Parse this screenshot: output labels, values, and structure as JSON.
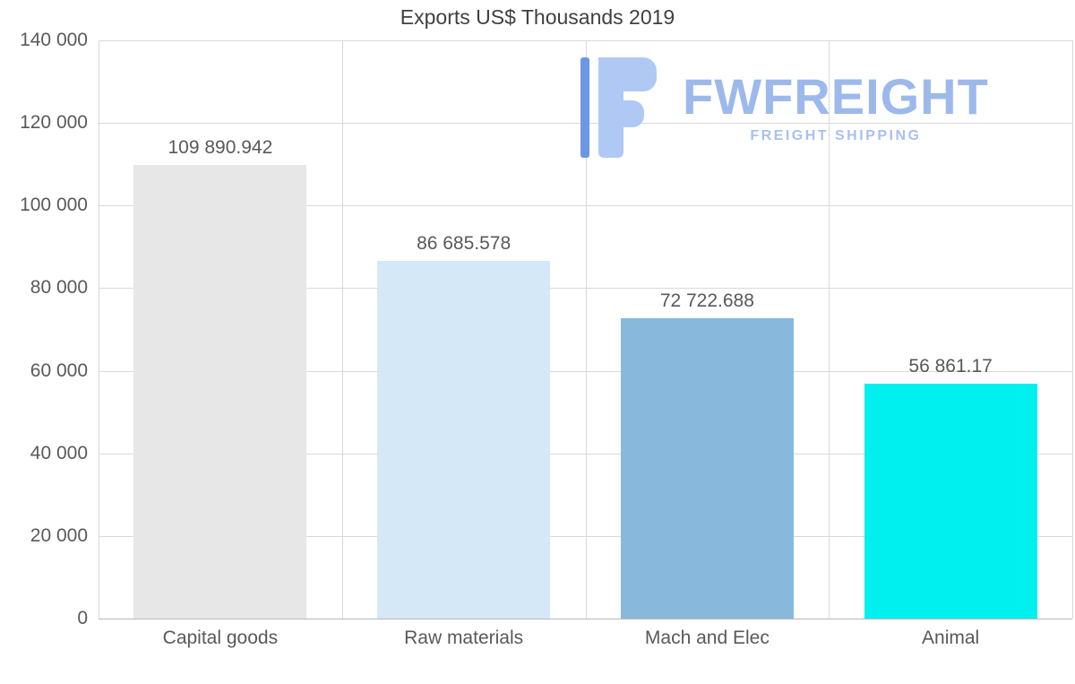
{
  "title": "Exports US$ Thousands 2019",
  "watermark": {
    "name": "FWFREIGHT",
    "subtitle": "FREIGHT SHIPPING",
    "text_color": "#9db9ec",
    "subtitle_color": "#a9c0ef",
    "icon_light": "#b0c9f4",
    "icon_dark": "#6d97e4"
  },
  "chart_data": {
    "type": "bar",
    "title": "Exports US$ Thousands 2019",
    "categories": [
      "Capital goods",
      "Raw materials",
      "Mach and Elec",
      "Animal"
    ],
    "values": [
      109890.942,
      86685.578,
      72722.688,
      56861.17
    ],
    "value_labels": [
      "109 890.942",
      "86 685.578",
      "72 722.688",
      "56 861.17"
    ],
    "bar_colors": [
      "#e7e7e7",
      "#d5e8f8",
      "#89b8dd",
      "#00f0f0"
    ],
    "xlabel": "",
    "ylabel": "",
    "ylim": [
      0,
      140000
    ],
    "ytick_labels": [
      "140 000",
      "120 000",
      "100 000",
      "80 000",
      "60 000",
      "40 000",
      "20 000",
      "0"
    ],
    "grid": true,
    "legend": "none"
  }
}
